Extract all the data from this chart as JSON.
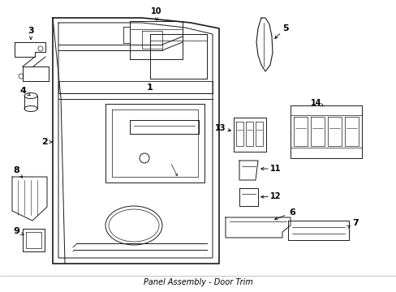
{
  "background_color": "#ffffff",
  "line_color": "#1a1a1a",
  "fig_width": 4.89,
  "fig_height": 3.6,
  "dpi": 100,
  "bottom_label": "Panel Assembly - Door Trim"
}
